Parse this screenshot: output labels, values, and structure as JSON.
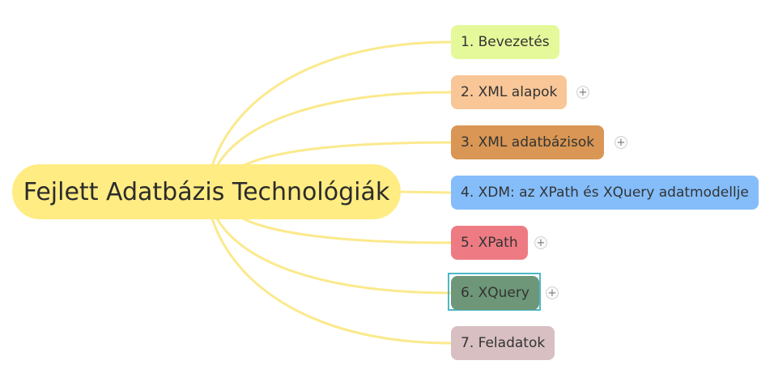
{
  "mindmap": {
    "central_topic": "Fejlett Adatbázis Technológiák",
    "colors": {
      "connector": "#fbe98c",
      "selection": "#4cb8c4"
    },
    "topics": [
      {
        "label": "1. Bevezetés",
        "color": "#e5f99a",
        "collapsed": false,
        "selected": false
      },
      {
        "label": "2. XML alapok",
        "color": "#f8c697",
        "collapsed": true,
        "selected": false
      },
      {
        "label": "3. XML adatbázisok",
        "color": "#d99654",
        "collapsed": true,
        "selected": false
      },
      {
        "label": "4. XDM: az XPath és XQuery adatmodellje",
        "color": "#84bdfa",
        "collapsed": false,
        "selected": false
      },
      {
        "label": "5. XPath",
        "color": "#ee7b83",
        "collapsed": true,
        "selected": false
      },
      {
        "label": "6. XQuery",
        "color": "#6d9778",
        "collapsed": true,
        "selected": true
      },
      {
        "label": "7. Feladatok",
        "color": "#d8bfc2",
        "collapsed": false,
        "selected": false
      }
    ],
    "expand_icon": "plus-icon",
    "expand_symbol": "+"
  }
}
